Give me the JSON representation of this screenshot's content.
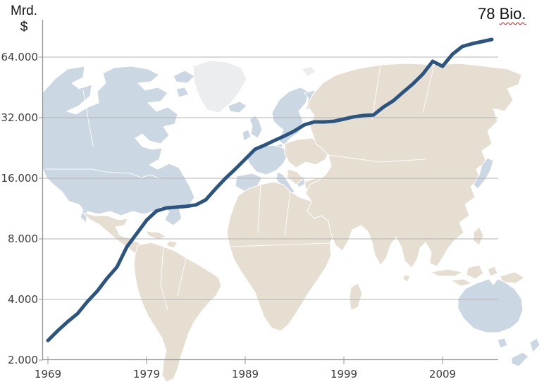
{
  "header": {
    "unit_line1": "Mrd.",
    "unit_line2": "$",
    "annotation_value": "78",
    "annotation_unit": "Bio."
  },
  "chart_data": {
    "type": "line",
    "title": "",
    "ylabel": "Mrd. $",
    "xlabel": "",
    "y_scale": "log2",
    "ylim": [
      2000,
      90000
    ],
    "xlim": [
      1969,
      2014
    ],
    "grid": true,
    "legend": "none",
    "annotation": {
      "text": "78 Bio.",
      "year": 2014,
      "value": 78000
    },
    "line_color": "#2B5580",
    "y_ticks": [
      {
        "label": "64.000",
        "value": 64000
      },
      {
        "label": "32.000",
        "value": 32000
      },
      {
        "label": "16.000",
        "value": 16000
      },
      {
        "label": "8.000",
        "value": 8000
      },
      {
        "label": "4.000",
        "value": 4000
      },
      {
        "label": "2.000",
        "value": 2000
      }
    ],
    "x_ticks": [
      {
        "label": "1969",
        "year": 1969
      },
      {
        "label": "1979",
        "year": 1979
      },
      {
        "label": "1989",
        "year": 1989
      },
      {
        "label": "1999",
        "year": 1999
      },
      {
        "label": "2009",
        "year": 2009
      }
    ],
    "years": [
      1969,
      1970,
      1971,
      1972,
      1973,
      1974,
      1975,
      1976,
      1977,
      1978,
      1979,
      1980,
      1981,
      1982,
      1983,
      1984,
      1985,
      1986,
      1987,
      1988,
      1989,
      1990,
      1991,
      1992,
      1993,
      1994,
      1995,
      1996,
      1997,
      1998,
      1999,
      2000,
      2001,
      2002,
      2003,
      2004,
      2005,
      2006,
      2007,
      2008,
      2009,
      2010,
      2011,
      2012,
      2013,
      2014
    ],
    "values": [
      2500,
      2800,
      3100,
      3400,
      3900,
      4400,
      5100,
      5800,
      7300,
      8500,
      9900,
      11000,
      11400,
      11500,
      11600,
      11800,
      12500,
      14200,
      16000,
      17800,
      19900,
      22300,
      23400,
      24700,
      26000,
      27500,
      29500,
      30500,
      30500,
      30700,
      31500,
      32300,
      32800,
      33000,
      36100,
      38800,
      42800,
      47100,
      52700,
      61000,
      57600,
      66100,
      72200,
      74600,
      76400,
      78300
    ]
  },
  "map": {
    "colors": {
      "land": "#E5DED1",
      "highlighted_land": "#CBD7E3",
      "pale_land": "#EBEDEF",
      "border": "#FFFFFF"
    }
  },
  "colors": {
    "gridline": "#B3B3B3",
    "axis": "#969696",
    "tick_text": "#3D3D3D",
    "annotation_underline": "#CC1111",
    "background": "#FFFFFF"
  }
}
